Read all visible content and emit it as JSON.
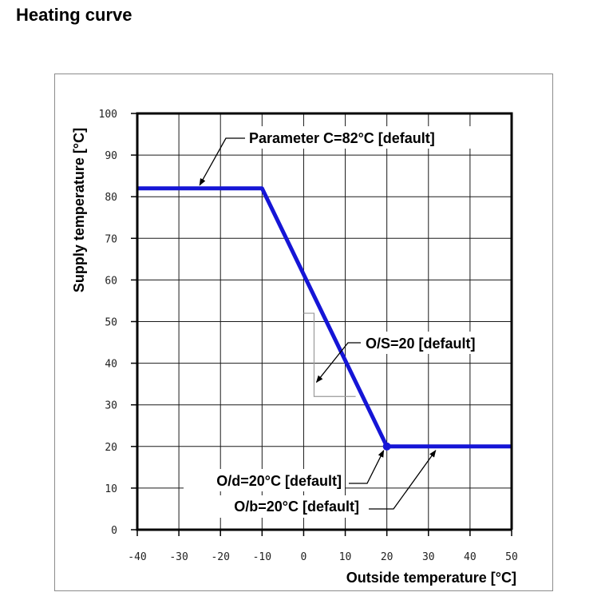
{
  "page": {
    "title": "Heating curve"
  },
  "chart_data": {
    "type": "line",
    "title": "Heating curve",
    "xlabel": "Outside temperature [°C]",
    "ylabel": "Supply temperature [°C]",
    "xlim": [
      -40,
      50
    ],
    "ylim": [
      0,
      100
    ],
    "x_ticks": [
      -40,
      -30,
      -20,
      -10,
      0,
      10,
      20,
      30,
      40,
      50
    ],
    "y_ticks": [
      0,
      10,
      20,
      30,
      40,
      50,
      60,
      70,
      80,
      90,
      100
    ],
    "x_tick_labels": [
      "-40",
      "-30",
      "-20",
      "-10",
      "0",
      "10",
      "20",
      "30",
      "40",
      "50"
    ],
    "y_tick_labels": [
      "0",
      "10",
      "20",
      "30",
      "40",
      "50",
      "60",
      "70",
      "80",
      "90",
      "100"
    ],
    "grid": true,
    "line_color": "#1515d6",
    "series": [
      {
        "name": "Heating curve",
        "x": [
          -40,
          -10,
          20,
          50
        ],
        "y": [
          82,
          82,
          20,
          20
        ]
      }
    ],
    "annotations": [
      {
        "id": "param-c",
        "text": "Parameter C=82°C [default]",
        "points_to": [
          -25,
          82
        ]
      },
      {
        "id": "os",
        "text": "O/S=20 [default]",
        "points_to": [
          2.5,
          36
        ]
      },
      {
        "id": "od",
        "text": "O/d=20°C [default]",
        "points_to": [
          20,
          20
        ]
      },
      {
        "id": "ob",
        "text": "O/b=20°C [default]",
        "points_to": [
          32.5,
          20
        ]
      }
    ]
  }
}
